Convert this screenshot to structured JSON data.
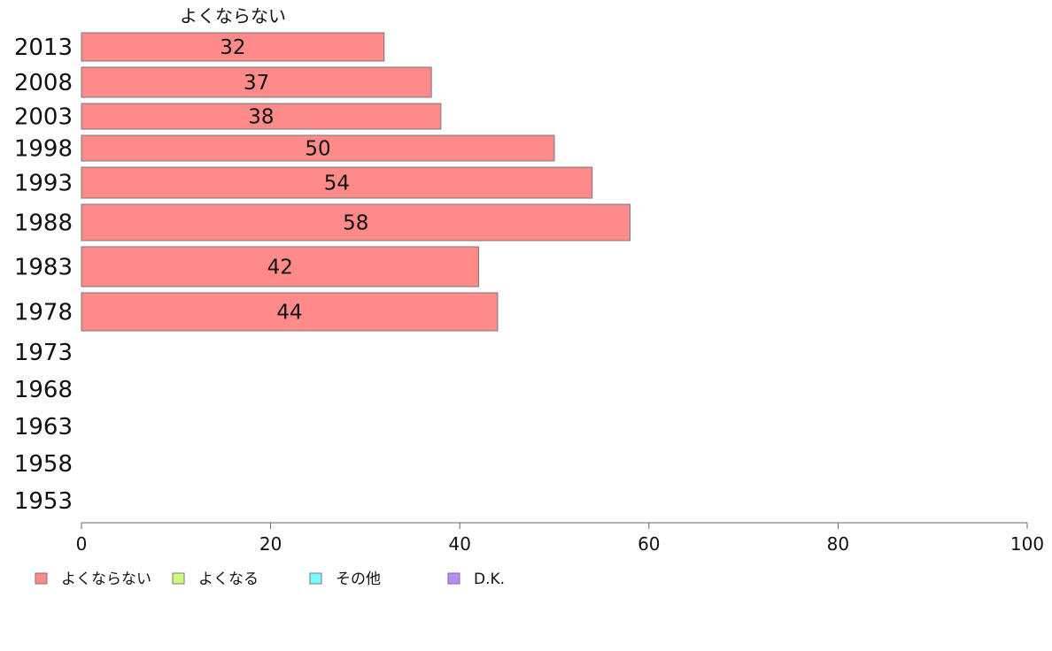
{
  "chart_data": {
    "type": "bar",
    "orientation": "horizontal",
    "stacked": true,
    "categories": [
      "2013",
      "2008",
      "2003",
      "1998",
      "1993",
      "1988",
      "1983",
      "1978",
      "1973",
      "1968",
      "1963",
      "1958",
      "1953"
    ],
    "series": [
      {
        "name": "よくならない",
        "color": "#ff8a8a",
        "values": [
          32,
          37,
          38,
          50,
          54,
          58,
          42,
          44,
          null,
          null,
          null,
          null,
          null
        ]
      },
      {
        "name": "よくなる",
        "color": "#ccff77",
        "values": [
          null,
          null,
          null,
          null,
          null,
          null,
          null,
          null,
          null,
          null,
          null,
          null,
          null
        ]
      },
      {
        "name": "その他",
        "color": "#77ffff",
        "values": [
          null,
          null,
          null,
          null,
          null,
          null,
          null,
          null,
          null,
          null,
          null,
          null,
          null
        ]
      },
      {
        "name": "D.K.",
        "color": "#bb88ff",
        "values": [
          null,
          null,
          null,
          null,
          null,
          null,
          null,
          null,
          null,
          null,
          null,
          null,
          null
        ]
      }
    ],
    "series_header": "よくならない",
    "xlim": [
      0,
      100
    ],
    "xticks": [
      "0",
      "20",
      "40",
      "60",
      "80",
      "100"
    ],
    "xticks_values": [
      0,
      20,
      40,
      60,
      80,
      100
    ],
    "grid": false,
    "legend_position": "bottom-left"
  }
}
